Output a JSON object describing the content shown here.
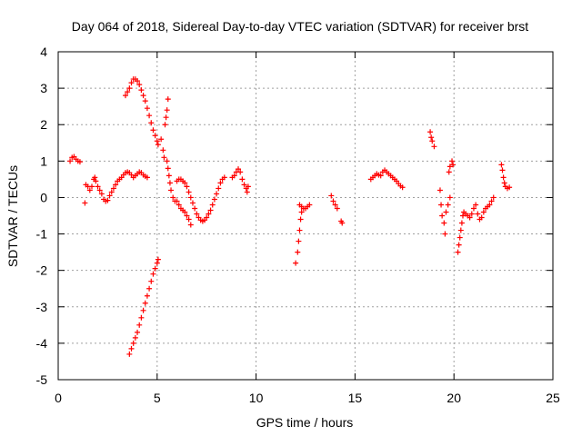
{
  "chart_data": {
    "type": "scatter",
    "title": "Day 064 of 2018, Sidereal Day-to-day VTEC variation (SDTVAR) for receiver brst",
    "xlabel": "GPS time / hours",
    "ylabel": "SDTVAR / TECUs",
    "xlim": [
      0,
      25
    ],
    "ylim": [
      -5,
      4
    ],
    "xticks": [
      0,
      5,
      10,
      15,
      20,
      25
    ],
    "yticks": [
      -5,
      -4,
      -3,
      -2,
      -1,
      0,
      1,
      2,
      3,
      4
    ],
    "grid": true,
    "marker": "+",
    "color": "#ff0000",
    "segments": [
      {
        "name": "arc-0.6h",
        "points": [
          [
            0.6,
            1.0
          ],
          [
            0.7,
            1.1
          ],
          [
            0.8,
            1.12
          ],
          [
            0.9,
            1.05
          ],
          [
            1.0,
            1.0
          ],
          [
            1.1,
            0.98
          ]
        ]
      },
      {
        "name": "arc-1.3h",
        "points": [
          [
            1.35,
            -0.15
          ],
          [
            1.4,
            0.35
          ],
          [
            1.5,
            0.3
          ],
          [
            1.6,
            0.2
          ],
          [
            1.7,
            0.3
          ],
          [
            1.8,
            0.5
          ],
          [
            1.85,
            0.55
          ],
          [
            1.9,
            0.45
          ],
          [
            2.0,
            0.3
          ],
          [
            2.1,
            0.2
          ],
          [
            2.2,
            0.1
          ],
          [
            2.3,
            -0.05
          ],
          [
            2.4,
            -0.1
          ],
          [
            2.5,
            -0.08
          ],
          [
            2.6,
            0.05
          ],
          [
            2.7,
            0.15
          ],
          [
            2.8,
            0.25
          ],
          [
            2.9,
            0.35
          ],
          [
            3.0,
            0.45
          ],
          [
            3.1,
            0.5
          ],
          [
            3.2,
            0.55
          ],
          [
            3.3,
            0.62
          ],
          [
            3.4,
            0.68
          ],
          [
            3.5,
            0.7
          ],
          [
            3.6,
            0.68
          ],
          [
            3.7,
            0.62
          ],
          [
            3.8,
            0.55
          ],
          [
            3.9,
            0.6
          ],
          [
            4.0,
            0.65
          ],
          [
            4.1,
            0.7
          ],
          [
            4.2,
            0.68
          ],
          [
            4.3,
            0.62
          ],
          [
            4.4,
            0.58
          ],
          [
            4.5,
            0.55
          ]
        ]
      },
      {
        "name": "arc-3.4h",
        "points": [
          [
            3.4,
            2.8
          ],
          [
            3.5,
            2.9
          ],
          [
            3.6,
            3.0
          ],
          [
            3.7,
            3.15
          ],
          [
            3.8,
            3.25
          ],
          [
            3.9,
            3.25
          ],
          [
            4.0,
            3.2
          ],
          [
            4.1,
            3.1
          ],
          [
            4.2,
            2.95
          ],
          [
            4.3,
            2.8
          ],
          [
            4.4,
            2.65
          ],
          [
            4.5,
            2.45
          ],
          [
            4.6,
            2.25
          ],
          [
            4.7,
            2.05
          ],
          [
            4.8,
            1.85
          ],
          [
            4.9,
            1.7
          ],
          [
            5.0,
            1.55
          ],
          [
            5.05,
            1.45
          ]
        ]
      },
      {
        "name": "arc-3.6h-down",
        "points": [
          [
            3.6,
            -4.3
          ],
          [
            3.7,
            -4.15
          ],
          [
            3.8,
            -4.0
          ],
          [
            3.9,
            -3.85
          ],
          [
            4.0,
            -3.7
          ],
          [
            4.1,
            -3.5
          ],
          [
            4.2,
            -3.3
          ],
          [
            4.3,
            -3.1
          ],
          [
            4.4,
            -2.9
          ],
          [
            4.5,
            -2.7
          ],
          [
            4.6,
            -2.5
          ],
          [
            4.7,
            -2.3
          ],
          [
            4.8,
            -2.1
          ],
          [
            4.9,
            -1.95
          ],
          [
            5.0,
            -1.8
          ],
          [
            5.05,
            -1.7
          ]
        ]
      },
      {
        "name": "arc-5.2h",
        "points": [
          [
            5.2,
            1.6
          ],
          [
            5.3,
            1.3
          ],
          [
            5.35,
            1.1
          ],
          [
            5.4,
            2.0
          ],
          [
            5.45,
            2.2
          ],
          [
            5.5,
            2.4
          ],
          [
            5.55,
            2.7
          ],
          [
            5.5,
            1.0
          ],
          [
            5.55,
            0.8
          ],
          [
            5.6,
            0.6
          ],
          [
            5.65,
            0.4
          ],
          [
            5.7,
            0.2
          ],
          [
            5.8,
            0.0
          ],
          [
            5.9,
            -0.1
          ],
          [
            6.0,
            -0.1
          ],
          [
            6.1,
            -0.2
          ],
          [
            6.2,
            -0.3
          ],
          [
            6.3,
            -0.35
          ],
          [
            6.4,
            -0.4
          ],
          [
            6.5,
            -0.5
          ],
          [
            6.6,
            -0.6
          ],
          [
            6.7,
            -0.75
          ]
        ]
      },
      {
        "name": "arc-6.0h",
        "points": [
          [
            6.0,
            0.45
          ],
          [
            6.1,
            0.5
          ],
          [
            6.2,
            0.5
          ],
          [
            6.3,
            0.45
          ],
          [
            6.4,
            0.4
          ],
          [
            6.5,
            0.3
          ],
          [
            6.6,
            0.15
          ],
          [
            6.7,
            0.0
          ],
          [
            6.8,
            -0.15
          ],
          [
            6.9,
            -0.3
          ],
          [
            7.0,
            -0.45
          ],
          [
            7.1,
            -0.55
          ],
          [
            7.2,
            -0.62
          ],
          [
            7.3,
            -0.65
          ],
          [
            7.4,
            -0.62
          ],
          [
            7.5,
            -0.55
          ],
          [
            7.6,
            -0.45
          ],
          [
            7.7,
            -0.35
          ],
          [
            7.8,
            -0.2
          ],
          [
            7.9,
            -0.05
          ],
          [
            8.0,
            0.1
          ],
          [
            8.1,
            0.25
          ],
          [
            8.2,
            0.4
          ],
          [
            8.3,
            0.5
          ],
          [
            8.4,
            0.55
          ]
        ]
      },
      {
        "name": "arc-8.8h",
        "points": [
          [
            8.8,
            0.55
          ],
          [
            8.9,
            0.6
          ],
          [
            9.0,
            0.7
          ],
          [
            9.1,
            0.78
          ],
          [
            9.2,
            0.7
          ],
          [
            9.3,
            0.5
          ],
          [
            9.4,
            0.35
          ],
          [
            9.5,
            0.25
          ],
          [
            9.55,
            0.15
          ],
          [
            9.6,
            0.3
          ]
        ]
      },
      {
        "name": "arc-12.0h",
        "points": [
          [
            12.0,
            -1.8
          ],
          [
            12.1,
            -1.5
          ],
          [
            12.15,
            -1.2
          ],
          [
            12.2,
            -0.9
          ],
          [
            12.25,
            -0.6
          ],
          [
            12.3,
            -0.4
          ],
          [
            12.2,
            -0.2
          ],
          [
            12.3,
            -0.25
          ],
          [
            12.4,
            -0.3
          ],
          [
            12.5,
            -0.3
          ],
          [
            12.6,
            -0.25
          ],
          [
            12.7,
            -0.2
          ]
        ]
      },
      {
        "name": "arc-13.8h",
        "points": [
          [
            13.8,
            0.05
          ],
          [
            13.9,
            -0.1
          ],
          [
            14.0,
            -0.2
          ],
          [
            14.1,
            -0.3
          ],
          [
            14.3,
            -0.65
          ],
          [
            14.35,
            -0.7
          ]
        ]
      },
      {
        "name": "arc-15.8h",
        "points": [
          [
            15.8,
            0.5
          ],
          [
            15.9,
            0.55
          ],
          [
            16.0,
            0.6
          ],
          [
            16.1,
            0.65
          ],
          [
            16.2,
            0.62
          ],
          [
            16.3,
            0.6
          ],
          [
            16.4,
            0.7
          ],
          [
            16.5,
            0.75
          ],
          [
            16.6,
            0.7
          ],
          [
            16.7,
            0.65
          ],
          [
            16.8,
            0.6
          ],
          [
            16.9,
            0.55
          ],
          [
            17.0,
            0.5
          ],
          [
            17.1,
            0.45
          ],
          [
            17.2,
            0.38
          ],
          [
            17.3,
            0.32
          ],
          [
            17.4,
            0.28
          ]
        ]
      },
      {
        "name": "arc-18.8h",
        "points": [
          [
            18.8,
            1.8
          ],
          [
            18.85,
            1.65
          ],
          [
            18.9,
            1.55
          ],
          [
            19.0,
            1.4
          ]
        ]
      },
      {
        "name": "arc-19.3h",
        "points": [
          [
            19.3,
            0.2
          ],
          [
            19.35,
            -0.2
          ],
          [
            19.4,
            -0.5
          ],
          [
            19.5,
            -0.7
          ],
          [
            19.55,
            -1.0
          ],
          [
            19.6,
            -0.4
          ],
          [
            19.7,
            -0.2
          ],
          [
            19.8,
            0.0
          ],
          [
            19.75,
            0.7
          ],
          [
            19.8,
            0.85
          ],
          [
            19.9,
            1.0
          ],
          [
            19.95,
            0.9
          ]
        ]
      },
      {
        "name": "arc-20.2h",
        "points": [
          [
            20.2,
            -1.5
          ],
          [
            20.25,
            -1.3
          ],
          [
            20.3,
            -1.1
          ],
          [
            20.35,
            -0.9
          ],
          [
            20.4,
            -0.7
          ],
          [
            20.45,
            -0.5
          ],
          [
            20.5,
            -0.4
          ],
          [
            20.6,
            -0.45
          ],
          [
            20.7,
            -0.5
          ],
          [
            20.8,
            -0.55
          ],
          [
            20.9,
            -0.45
          ],
          [
            21.0,
            -0.3
          ],
          [
            21.1,
            -0.2
          ],
          [
            21.2,
            -0.45
          ],
          [
            21.3,
            -0.6
          ],
          [
            21.4,
            -0.55
          ],
          [
            21.5,
            -0.4
          ],
          [
            21.6,
            -0.3
          ],
          [
            21.7,
            -0.25
          ],
          [
            21.8,
            -0.2
          ],
          [
            21.9,
            -0.1
          ],
          [
            22.0,
            0.0
          ]
        ]
      },
      {
        "name": "arc-22.4h",
        "points": [
          [
            22.4,
            0.9
          ],
          [
            22.45,
            0.75
          ],
          [
            22.5,
            0.55
          ],
          [
            22.55,
            0.4
          ],
          [
            22.6,
            0.3
          ],
          [
            22.7,
            0.25
          ],
          [
            22.8,
            0.28
          ]
        ]
      }
    ]
  }
}
